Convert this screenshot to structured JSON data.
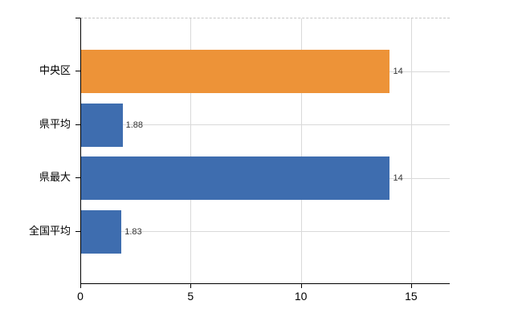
{
  "chart_data": {
    "type": "bar",
    "orientation": "horizontal",
    "title": "",
    "categories": [
      "中央区",
      "県平均",
      "県最大",
      "全国平均"
    ],
    "values": [
      14,
      1.88,
      14,
      1.83
    ],
    "value_labels": [
      "14",
      "1.88",
      "14",
      "1.83"
    ],
    "bar_colors": [
      "#ED9338",
      "#3E6DAF",
      "#3E6DAF",
      "#3E6DAF"
    ],
    "x_ticks": [
      0,
      5,
      10,
      15
    ],
    "x_tick_labels": [
      "0",
      "5",
      "10",
      "15"
    ],
    "xlim": [
      0,
      16.75
    ],
    "grid": true,
    "legend": false,
    "colors": {
      "highlight_bar": "#ED9338",
      "default_bar": "#3E6DAF",
      "gridline": "#D9D9D9",
      "axis": "#000000",
      "top_border_dashed": "#C6C6C6",
      "value_text": "#333333",
      "tick_text": "#000000",
      "background": "#FFFFFF"
    }
  }
}
